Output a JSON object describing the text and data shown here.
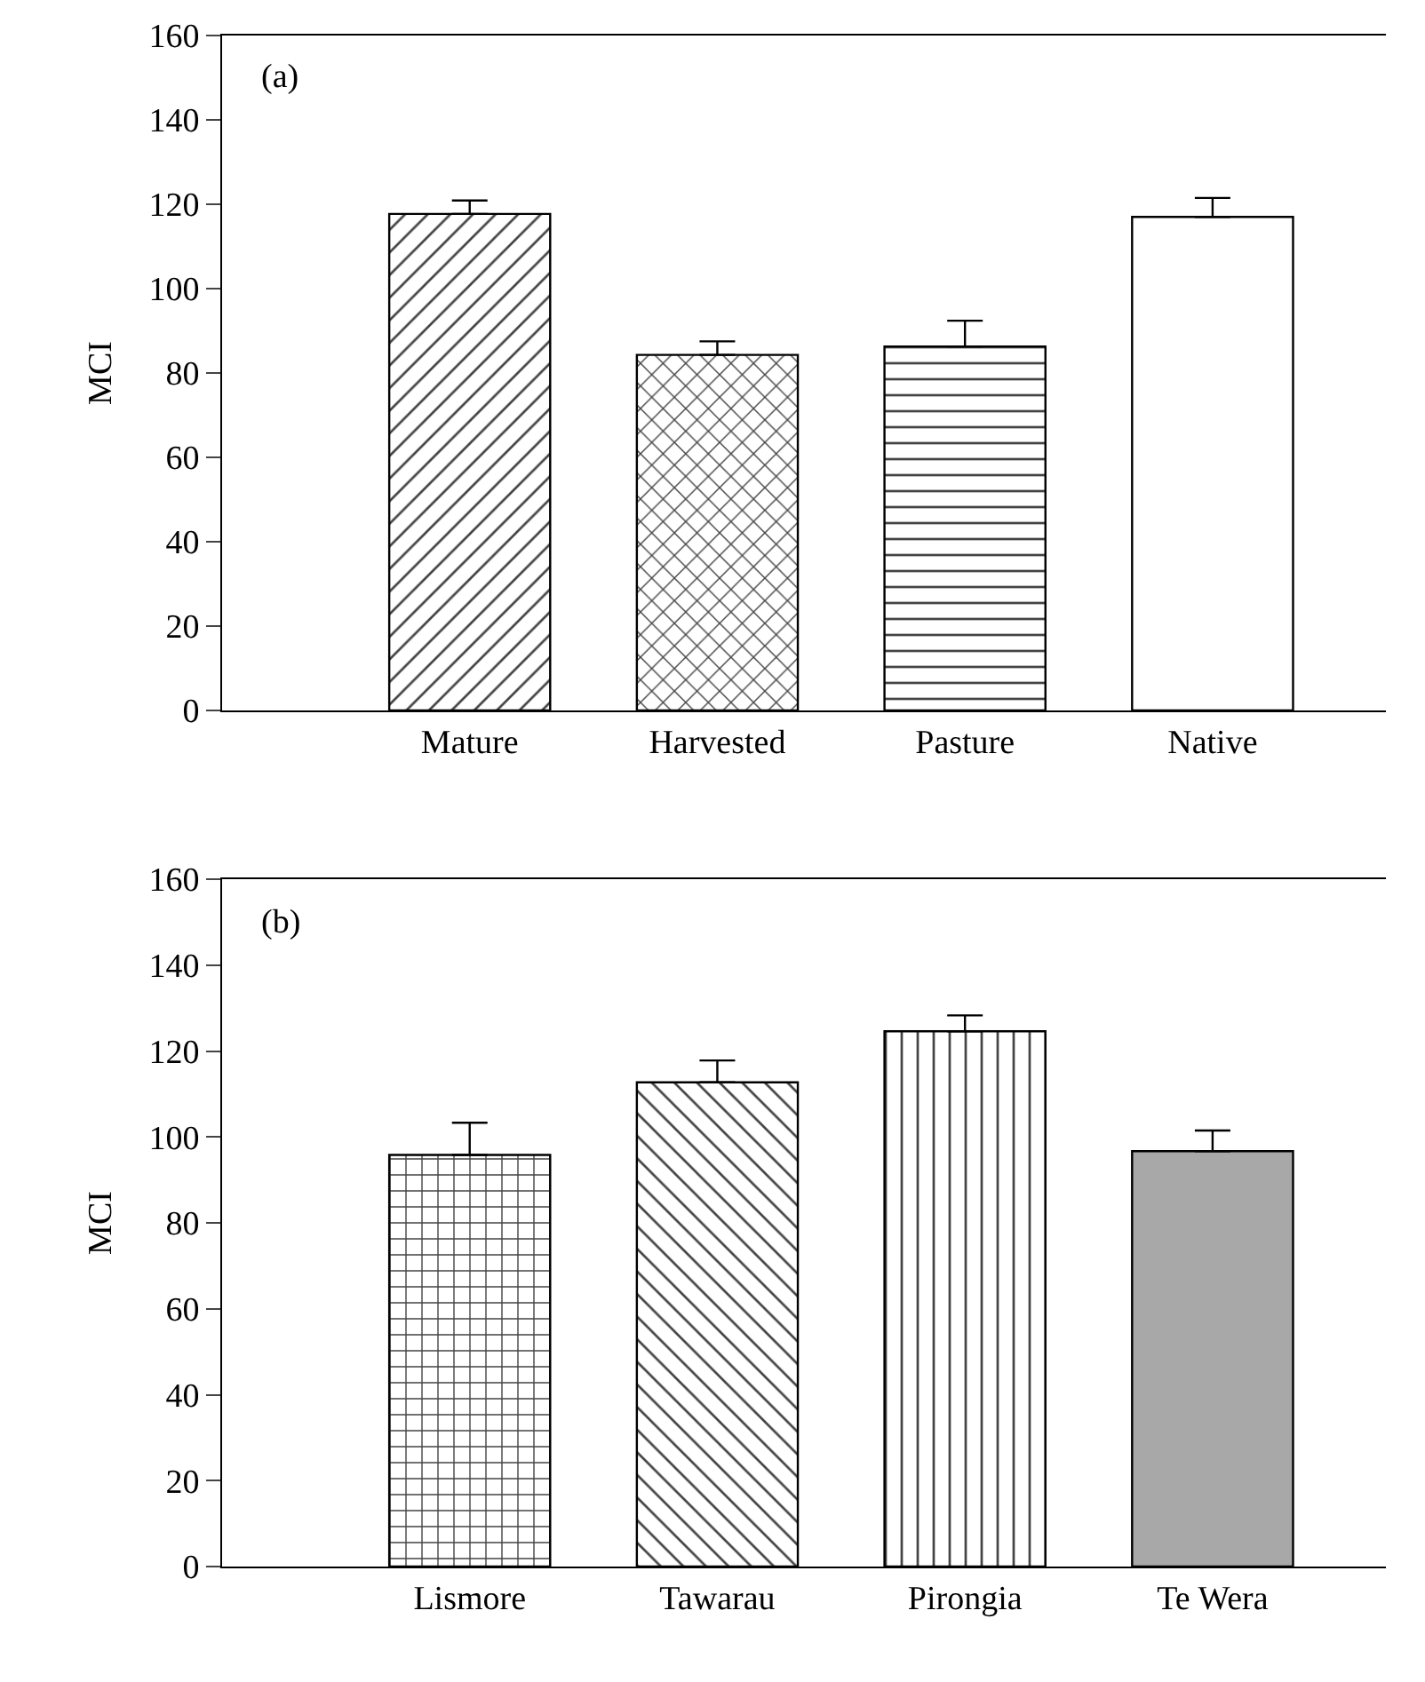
{
  "chart_data": [
    {
      "type": "bar",
      "ylabel": "MCI",
      "annotations": [
        "(a)"
      ],
      "categories": [
        "Mature",
        "Harvested",
        "Pasture",
        "Native"
      ],
      "values": [
        117.7,
        84.3,
        86.3,
        117.0
      ],
      "errors": [
        [
          117.7,
          120.9
        ],
        [
          84.3,
          87.5
        ],
        [
          86.3,
          92.4
        ],
        [
          117.0,
          121.5
        ]
      ],
      "colors": [
        "#000000",
        "#000000",
        "#000000",
        "#ffffff"
      ],
      "ylim": [
        0,
        160
      ],
      "yticks": [
        0,
        20,
        40,
        60,
        80,
        100,
        120,
        140,
        160
      ]
    },
    {
      "type": "bar",
      "ylabel": "MCI",
      "annotations": [
        "(b)"
      ],
      "categories": [
        "Lismore",
        "Tawarau",
        "Pirongia",
        "Te Wera"
      ],
      "values": [
        95.8,
        112.7,
        124.6,
        96.7
      ],
      "errors": [
        [
          95.8,
          103.3
        ],
        [
          112.7,
          117.8
        ],
        [
          124.6,
          128.3
        ],
        [
          96.7,
          101.5
        ]
      ],
      "colors": [
        "#000000",
        "#000000",
        "#000000",
        "#a8a8a8"
      ],
      "ylim": [
        0,
        160
      ],
      "yticks": [
        0,
        20,
        40,
        60,
        80,
        100,
        120,
        140,
        160
      ]
    }
  ]
}
